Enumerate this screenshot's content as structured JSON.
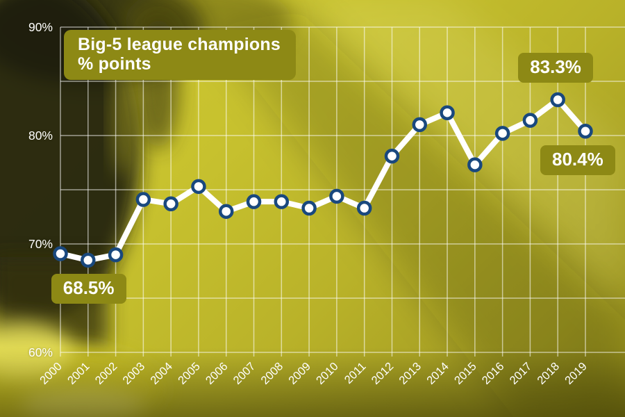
{
  "header": {
    "title_line1": "Big-5 league champions",
    "title_line2": "% points"
  },
  "chart_data": {
    "type": "line",
    "title": "Big-5 league champions % points",
    "x": [
      2000,
      2001,
      2002,
      2003,
      2004,
      2005,
      2006,
      2007,
      2008,
      2009,
      2010,
      2011,
      2012,
      2013,
      2014,
      2015,
      2016,
      2017,
      2018,
      2019
    ],
    "values": [
      69.1,
      68.5,
      69.0,
      74.1,
      73.7,
      75.3,
      73.0,
      73.9,
      73.9,
      73.3,
      74.4,
      73.3,
      78.1,
      81.0,
      82.1,
      77.3,
      80.2,
      81.4,
      83.3,
      80.4
    ],
    "ylim": [
      60,
      90
    ],
    "y_tick_labels": [
      {
        "value": 90,
        "label": "90%"
      },
      {
        "value": 80,
        "label": "80%"
      },
      {
        "value": 70,
        "label": "70%"
      },
      {
        "value": 60,
        "label": "60%"
      }
    ],
    "y_grid_step": 5,
    "grid": true,
    "legend_position": "none",
    "annotations": [
      {
        "year": 2001,
        "value": 68.5,
        "label": "68.5%",
        "side": "below",
        "dx": 1
      },
      {
        "year": 2018,
        "value": 83.3,
        "label": "83.3%",
        "side": "above",
        "dx": -3
      },
      {
        "year": 2019,
        "value": 80.4,
        "label": "80.4%",
        "side": "below",
        "dx": -11
      }
    ]
  },
  "colors": {
    "background": "#c5bf2e",
    "label_box": "#8d8915",
    "line": "#ffffff",
    "marker_fill": "#ffffff",
    "marker_stroke": "#19487e",
    "grid": "rgba(255,255,255,0.55)",
    "text": "#ffffff"
  }
}
